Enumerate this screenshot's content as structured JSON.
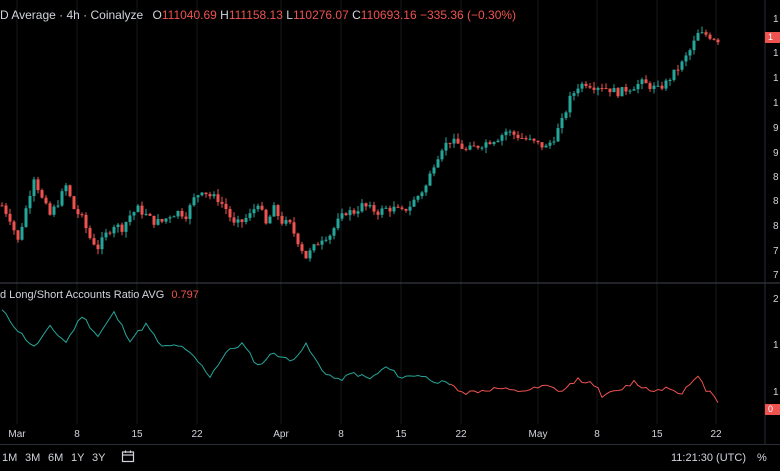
{
  "main_header": {
    "title": "D Average · 4h · Coinalyze",
    "o_label": "O",
    "o_value": "111040.69",
    "h_label": "H",
    "h_value": "111158.13",
    "l_label": "L",
    "l_value": "110276.07",
    "c_label": "C",
    "c_value": "110693.16",
    "change": "−335.36 (−0.30%)"
  },
  "indicator_header": {
    "title": "d Long/Short Accounts Ratio AVG",
    "value": "0.797"
  },
  "price_axis_labels": [
    "1",
    "1",
    "1",
    "1",
    "9",
    "9",
    "8",
    "8",
    "8",
    "7",
    "7"
  ],
  "price_tag": "1",
  "ratio_axis_labels": [
    "2",
    "1",
    "1"
  ],
  "ratio_tag": "0",
  "date_labels": [
    "Mar",
    "8",
    "15",
    "22",
    "Apr",
    "8",
    "15",
    "22",
    "May",
    "8",
    "15",
    "22"
  ],
  "timeframes": [
    "1M",
    "3M",
    "6M",
    "1Y",
    "3Y"
  ],
  "clock": "11:21:30 (UTC)",
  "percent_label": "%",
  "colors": {
    "up": "#26a69a",
    "down": "#ef5350",
    "grid": "#2a2e39",
    "separator": "#434651"
  },
  "chart_data": [
    {
      "type": "candlestick",
      "title": "D Average · 4h · Coinalyze",
      "x_range": [
        "Feb 25",
        "May 22"
      ],
      "y_range": [
        75000,
        112500
      ],
      "y_scale": "linear",
      "close_series": [
        [
          0,
          85000
        ],
        [
          2,
          83000
        ],
        [
          4,
          79500
        ],
        [
          6,
          84500
        ],
        [
          8,
          89500
        ],
        [
          10,
          86000
        ],
        [
          12,
          83500
        ],
        [
          14,
          85500
        ],
        [
          16,
          88000
        ],
        [
          18,
          84500
        ],
        [
          20,
          83000
        ],
        [
          22,
          80000
        ],
        [
          24,
          78500
        ],
        [
          26,
          80500
        ],
        [
          28,
          82000
        ],
        [
          30,
          81500
        ],
        [
          32,
          83500
        ],
        [
          34,
          84500
        ],
        [
          36,
          83500
        ],
        [
          38,
          82500
        ],
        [
          40,
          82500
        ],
        [
          42,
          83500
        ],
        [
          44,
          84000
        ],
        [
          46,
          83500
        ],
        [
          48,
          86000
        ],
        [
          50,
          87500
        ],
        [
          52,
          86500
        ],
        [
          54,
          86000
        ],
        [
          56,
          84500
        ],
        [
          58,
          82000
        ],
        [
          60,
          82500
        ],
        [
          62,
          83500
        ],
        [
          64,
          85500
        ],
        [
          66,
          82000
        ],
        [
          68,
          84500
        ],
        [
          70,
          82500
        ],
        [
          72,
          82000
        ],
        [
          74,
          79500
        ],
        [
          76,
          77000
        ],
        [
          78,
          78500
        ],
        [
          80,
          80000
        ],
        [
          82,
          80500
        ],
        [
          84,
          82500
        ],
        [
          86,
          84000
        ],
        [
          88,
          84000
        ],
        [
          90,
          85000
        ],
        [
          92,
          84500
        ],
        [
          94,
          84000
        ],
        [
          96,
          84500
        ],
        [
          98,
          84500
        ],
        [
          100,
          84000
        ],
        [
          102,
          85000
        ],
        [
          104,
          86500
        ],
        [
          106,
          88000
        ],
        [
          108,
          91500
        ],
        [
          110,
          94000
        ],
        [
          112,
          95000
        ],
        [
          114,
          94500
        ],
        [
          116,
          93500
        ],
        [
          118,
          94000
        ],
        [
          120,
          94500
        ],
        [
          122,
          95000
        ],
        [
          124,
          95500
        ],
        [
          126,
          96500
        ],
        [
          128,
          96000
        ],
        [
          130,
          95500
        ],
        [
          132,
          95000
        ],
        [
          134,
          94500
        ],
        [
          136,
          94000
        ],
        [
          138,
          95500
        ],
        [
          140,
          98000
        ],
        [
          142,
          101500
        ],
        [
          144,
          103500
        ],
        [
          146,
          104000
        ],
        [
          148,
          103500
        ],
        [
          150,
          103500
        ],
        [
          152,
          103000
        ],
        [
          154,
          102500
        ],
        [
          156,
          103000
        ],
        [
          158,
          103500
        ],
        [
          160,
          104000
        ],
        [
          162,
          103500
        ],
        [
          164,
          103000
        ],
        [
          166,
          104000
        ],
        [
          168,
          105500
        ],
        [
          170,
          107000
        ],
        [
          172,
          109000
        ],
        [
          174,
          111500
        ],
        [
          176,
          111500
        ],
        [
          178,
          111000
        ],
        [
          179,
          110700
        ]
      ]
    },
    {
      "type": "line",
      "title": "d Long/Short Accounts Ratio AVG",
      "x_range": [
        "Feb 25",
        "May 22"
      ],
      "y_range": [
        0.7,
        2.3
      ],
      "y_scale": "linear",
      "current_value": 0.797,
      "series": [
        {
          "values": [
            [
              0,
              2.05
            ],
            [
              4,
              1.78
            ],
            [
              8,
              1.55
            ],
            [
              12,
              1.82
            ],
            [
              16,
              1.62
            ],
            [
              20,
              1.98
            ],
            [
              24,
              1.7
            ],
            [
              28,
              2.02
            ],
            [
              32,
              1.65
            ],
            [
              36,
              1.86
            ],
            [
              40,
              1.55
            ],
            [
              44,
              1.58
            ],
            [
              48,
              1.42
            ],
            [
              52,
              1.16
            ],
            [
              56,
              1.48
            ],
            [
              60,
              1.6
            ],
            [
              64,
              1.3
            ],
            [
              68,
              1.48
            ],
            [
              72,
              1.36
            ],
            [
              76,
              1.58
            ],
            [
              80,
              1.24
            ],
            [
              84,
              1.1
            ],
            [
              88,
              1.2
            ],
            [
              92,
              1.12
            ],
            [
              96,
              1.28
            ],
            [
              100,
              1.14
            ],
            [
              104,
              1.18
            ],
            [
              108,
              1.1
            ],
            [
              112,
              1.04
            ]
          ]
        },
        {
          "values": [
            [
              112,
              1.04
            ],
            [
              116,
              0.93
            ],
            [
              120,
              0.96
            ],
            [
              124,
              0.99
            ],
            [
              128,
              0.95
            ],
            [
              132,
              0.97
            ],
            [
              136,
              1.02
            ],
            [
              140,
              0.95
            ],
            [
              144,
              1.12
            ],
            [
              148,
              1.05
            ],
            [
              150,
              0.9
            ],
            [
              154,
              0.95
            ],
            [
              158,
              1.08
            ],
            [
              162,
              0.96
            ],
            [
              166,
              1.0
            ],
            [
              170,
              0.94
            ],
            [
              174,
              1.14
            ],
            [
              176,
              0.98
            ],
            [
              178,
              0.9
            ],
            [
              179,
              0.8
            ]
          ]
        }
      ]
    }
  ]
}
